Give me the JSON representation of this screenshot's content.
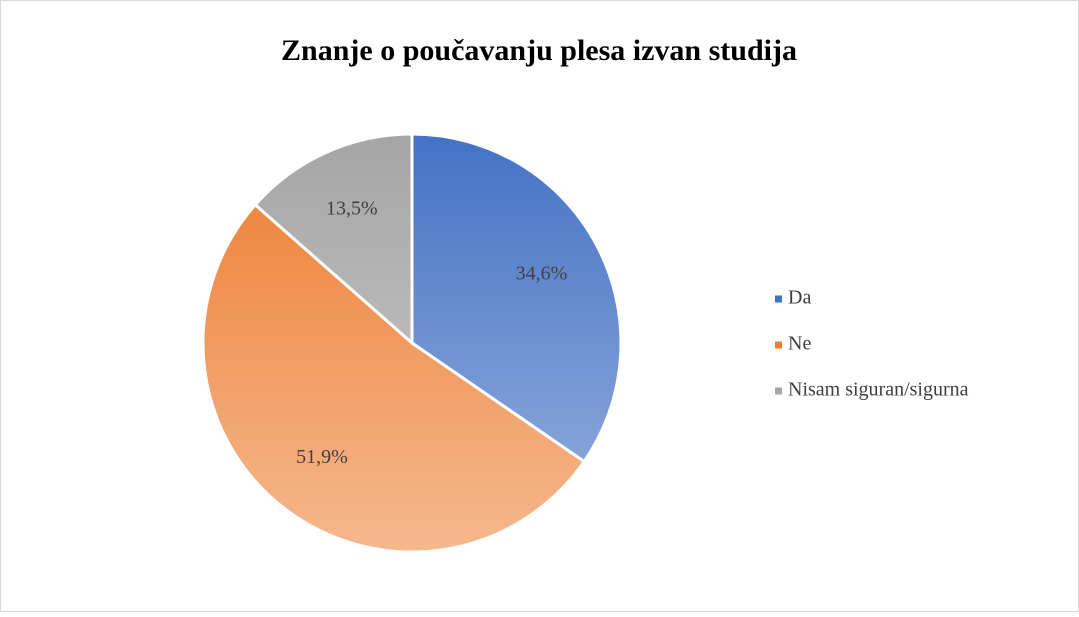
{
  "chart_data": {
    "type": "pie",
    "title": "Znanje o poučavanju plesa izvan studija",
    "categories": [
      "Da",
      "Ne",
      "Nisam siguran/sigurna"
    ],
    "values": [
      34.6,
      51.9,
      13.5
    ],
    "value_labels": [
      "34,6%",
      "51,9%",
      "13,5%"
    ],
    "colors": [
      "#4472c4",
      "#ed7d31",
      "#a5a5a5"
    ],
    "legend": "right"
  }
}
